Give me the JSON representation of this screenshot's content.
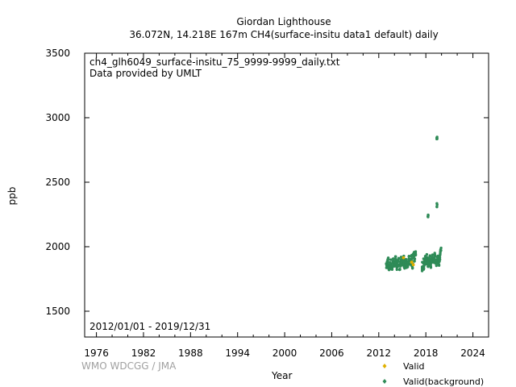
{
  "header": {
    "title": "Giordan Lighthouse",
    "subtitle": "36.072N, 14.218E 167m     CH4(surface-insitu data1 default) daily"
  },
  "annotations": {
    "filename": "ch4_glh6049_surface-insitu_75_9999-9999_daily.txt",
    "provider": "Data provided by UMLT",
    "period": "2012/01/01 - 2019/12/31",
    "credit": "WMO WDCGG / JMA"
  },
  "colors": {
    "valid": "#e0b000",
    "background": "#2e8b57",
    "credit": "#a0a0a0"
  },
  "chart_data": {
    "type": "scatter",
    "xlabel": "Year",
    "ylabel": "ppb",
    "xlim": [
      1974.5,
      2026
    ],
    "ylim": [
      1300,
      3500
    ],
    "xticks": [
      1976,
      1982,
      1988,
      1994,
      2000,
      2006,
      2012,
      2018,
      2024
    ],
    "yticks": [
      1500,
      2000,
      2500,
      3000,
      3500
    ],
    "grid": false,
    "legend": "bottom-right",
    "series": [
      {
        "name": "Valid",
        "color": "#e0b000",
        "points": [
          [
            2015.15,
            1915
          ],
          [
            2016.2,
            1880
          ],
          [
            2016.4,
            1860
          ]
        ]
      },
      {
        "name": "Valid(background)",
        "color": "#2e8b57",
        "points": [
          [
            2013.0,
            1850
          ],
          [
            2013.08,
            1875
          ],
          [
            2013.17,
            1900
          ],
          [
            2013.25,
            1840
          ],
          [
            2013.33,
            1830
          ],
          [
            2013.42,
            1860
          ],
          [
            2013.5,
            1880
          ],
          [
            2013.58,
            1845
          ],
          [
            2013.67,
            1825
          ],
          [
            2013.75,
            1855
          ],
          [
            2013.83,
            1890
          ],
          [
            2013.92,
            1870
          ],
          [
            2014.0,
            1860
          ],
          [
            2014.08,
            1885
          ],
          [
            2014.17,
            1905
          ],
          [
            2014.25,
            1850
          ],
          [
            2014.33,
            1835
          ],
          [
            2014.42,
            1870
          ],
          [
            2014.5,
            1890
          ],
          [
            2014.58,
            1855
          ],
          [
            2014.67,
            1830
          ],
          [
            2014.75,
            1865
          ],
          [
            2014.83,
            1900
          ],
          [
            2014.92,
            1880
          ],
          [
            2015.0,
            1870
          ],
          [
            2015.08,
            1890
          ],
          [
            2015.17,
            1910
          ],
          [
            2015.25,
            1860
          ],
          [
            2015.33,
            1845
          ],
          [
            2015.42,
            1880
          ],
          [
            2015.5,
            1895
          ],
          [
            2015.58,
            1860
          ],
          [
            2015.67,
            1840
          ],
          [
            2015.75,
            1875
          ],
          [
            2015.83,
            1905
          ],
          [
            2015.92,
            1885
          ],
          [
            2016.0,
            1880
          ],
          [
            2016.08,
            1900
          ],
          [
            2016.17,
            1920
          ],
          [
            2016.25,
            1870
          ],
          [
            2016.33,
            1850
          ],
          [
            2016.42,
            1935
          ],
          [
            2016.5,
            1945
          ],
          [
            2016.58,
            1900
          ],
          [
            2016.67,
            1955
          ],
          [
            2017.5,
            1830
          ],
          [
            2017.58,
            1860
          ],
          [
            2017.67,
            1890
          ],
          [
            2017.75,
            1845
          ],
          [
            2017.83,
            1875
          ],
          [
            2017.92,
            1905
          ],
          [
            2018.0,
            1880
          ],
          [
            2018.08,
            1900
          ],
          [
            2018.17,
            1925
          ],
          [
            2018.25,
            1870
          ],
          [
            2018.33,
            1860
          ],
          [
            2018.42,
            1890
          ],
          [
            2018.5,
            1910
          ],
          [
            2018.58,
            1875
          ],
          [
            2018.67,
            1860
          ],
          [
            2018.75,
            1895
          ],
          [
            2018.83,
            1925
          ],
          [
            2018.92,
            1905
          ],
          [
            2019.0,
            1895
          ],
          [
            2019.08,
            1915
          ],
          [
            2019.17,
            1935
          ],
          [
            2019.25,
            1885
          ],
          [
            2019.33,
            1870
          ],
          [
            2019.42,
            1900
          ],
          [
            2019.5,
            1920
          ],
          [
            2019.58,
            1890
          ],
          [
            2019.67,
            1875
          ],
          [
            2019.75,
            1910
          ],
          [
            2019.83,
            1945
          ],
          [
            2019.92,
            1975
          ],
          [
            2018.3,
            2240
          ],
          [
            2019.4,
            2830
          ],
          [
            2019.45,
            2320
          ]
        ]
      }
    ]
  }
}
